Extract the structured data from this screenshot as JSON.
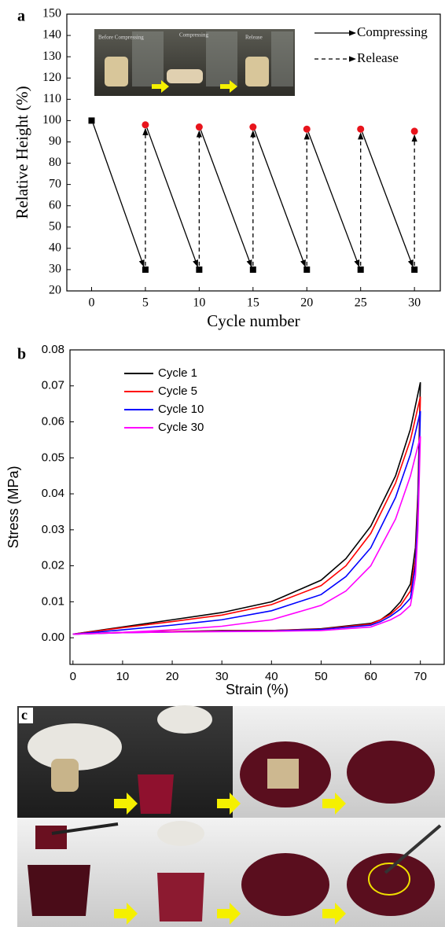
{
  "panel_labels": [
    "a",
    "b",
    "c"
  ],
  "chart_data": [
    {
      "type": "scatter",
      "xlabel": "Cycle number",
      "ylabel": "Relative Height (%)",
      "inset_labels": [
        "Before Compressing",
        "Compressing",
        "Release"
      ],
      "xlim": [
        -2.3,
        32.4
      ],
      "ylim": [
        20,
        150
      ],
      "xticks": [
        0,
        5,
        10,
        15,
        20,
        25,
        30
      ],
      "yticks": [
        20,
        30,
        40,
        50,
        60,
        70,
        80,
        90,
        100,
        110,
        120,
        130,
        140,
        150
      ],
      "series": [
        {
          "name": "Compressing",
          "color": "#000000",
          "x": [
            0,
            5,
            10,
            15,
            20,
            25,
            30
          ],
          "values": [
            100,
            30,
            30,
            30,
            30,
            30,
            30
          ]
        },
        {
          "name": "Release",
          "color": "#e8141c",
          "x": [
            5,
            10,
            15,
            20,
            25,
            30
          ],
          "values": [
            98,
            97,
            97,
            96,
            96,
            95
          ]
        }
      ]
    },
    {
      "type": "line",
      "xlabel": "Strain (%)",
      "ylabel": "Stress (MPa)",
      "xlim": [
        -0.6,
        74.8
      ],
      "ylim": [
        -0.0074,
        0.08
      ],
      "xticks": [
        0,
        10,
        20,
        30,
        40,
        50,
        60,
        70
      ],
      "yticks": [
        {
          "value": 0,
          "label": "0.00"
        },
        {
          "value": 0.01,
          "label": "0.01"
        },
        {
          "value": 0.02,
          "label": "0.02"
        },
        {
          "value": 0.03,
          "label": "0.03"
        },
        {
          "value": 0.04,
          "label": "0.04"
        },
        {
          "value": 0.05,
          "label": "0.05"
        },
        {
          "value": 0.06,
          "label": "0.06"
        },
        {
          "value": 0.07,
          "label": "0.07"
        },
        {
          "value": 0.08,
          "label": "0.08"
        }
      ],
      "x": [
        0,
        10,
        20,
        30,
        40,
        50,
        55,
        60,
        65,
        68,
        70,
        69.5,
        69,
        68,
        66,
        64,
        62,
        60,
        50,
        40,
        30,
        20,
        10,
        0
      ],
      "series": [
        {
          "name": "Cycle 1",
          "color": "#000000",
          "values": [
            0.001,
            0.003,
            0.005,
            0.007,
            0.01,
            0.016,
            0.022,
            0.031,
            0.045,
            0.058,
            0.071,
            0.04,
            0.025,
            0.015,
            0.01,
            0.007,
            0.005,
            0.004,
            0.0025,
            0.002,
            0.002,
            0.0017,
            0.0015,
            0.001
          ]
        },
        {
          "name": "Cycle 5",
          "color": "#ff0000",
          "values": [
            0.001,
            0.0028,
            0.0045,
            0.0063,
            0.0092,
            0.0145,
            0.02,
            0.029,
            0.043,
            0.055,
            0.067,
            0.038,
            0.022,
            0.013,
            0.009,
            0.0065,
            0.005,
            0.0038,
            0.0024,
            0.002,
            0.0019,
            0.0017,
            0.0015,
            0.001
          ]
        },
        {
          "name": "Cycle 10",
          "color": "#0000ff",
          "values": [
            0.001,
            0.0022,
            0.0035,
            0.005,
            0.0075,
            0.012,
            0.017,
            0.025,
            0.039,
            0.051,
            0.063,
            0.035,
            0.02,
            0.011,
            0.008,
            0.006,
            0.0045,
            0.0035,
            0.0023,
            0.0019,
            0.0018,
            0.0016,
            0.0014,
            0.001
          ]
        },
        {
          "name": "Cycle 30",
          "color": "#ff00ff",
          "values": [
            0.001,
            0.0015,
            0.0022,
            0.0032,
            0.005,
            0.009,
            0.013,
            0.02,
            0.033,
            0.045,
            0.056,
            0.03,
            0.017,
            0.009,
            0.0065,
            0.005,
            0.004,
            0.003,
            0.002,
            0.0018,
            0.0017,
            0.0016,
            0.0014,
            0.001
          ]
        }
      ]
    }
  ]
}
